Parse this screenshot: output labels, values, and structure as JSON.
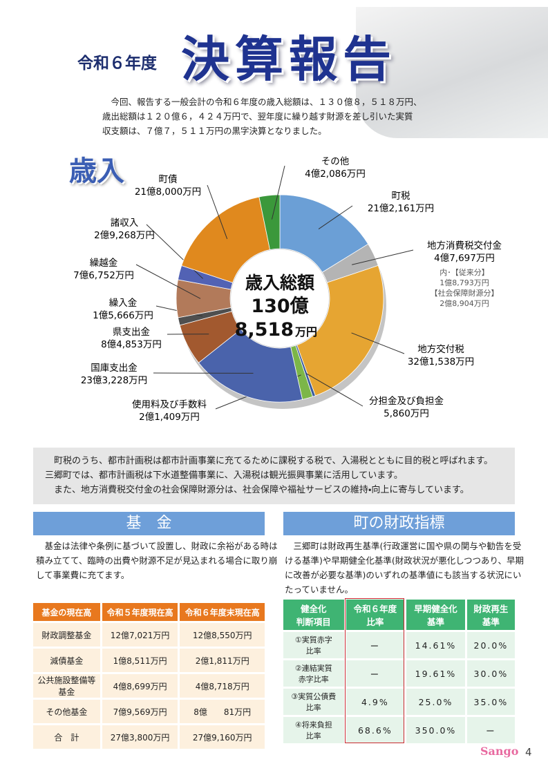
{
  "header": {
    "era": "令和６年度",
    "title": "決算報告"
  },
  "intro": [
    "　今回、報告する一般会計の令和６年度の歳入総額は、１３０億８，５１８万円、",
    "歳出総額は１２０億６，４２４万円で、翌年度に繰り越す財源を差し引いた実質",
    "収支額は、７億７，５１１万円の黒字決算となりました。"
  ],
  "section_title": "歳入",
  "chart_data": {
    "type": "pie",
    "categories": [
      "町税",
      "地方消費税交付金",
      "地方交付税",
      "分担金及び負担金",
      "使用料及び手数料",
      "国庫支出金",
      "県支出金",
      "繰入金",
      "繰越金",
      "諸収入",
      "町債",
      "その他"
    ],
    "values": [
      212161,
      47697,
      321538,
      5860,
      21409,
      233228,
      84853,
      15666,
      76752,
      29268,
      218000,
      42086
    ],
    "value_labels": [
      "21億2,161万円",
      "4億7,697万円",
      "32億1,538万円",
      "5,860万円",
      "2億1,409万円",
      "23億3,228万円",
      "8億4,853万円",
      "1億5,666万円",
      "7億6,752万円",
      "2億9,268万円",
      "21億8,000万円",
      "4億2,086万円"
    ],
    "colors": [
      "#6b9fd6",
      "#b4b4b4",
      "#e6a532",
      "#3c5c9c",
      "#7cb648",
      "#4a63ab",
      "#a2592f",
      "#4f4f4f",
      "#b27a5a",
      "#5262b4",
      "#e0891e",
      "#3b983b"
    ],
    "center_label": [
      "歳入総額",
      "130億",
      "8,518",
      "万円"
    ],
    "annotations": [
      "内･【従来分】",
      "1億8,793万円",
      "【社会保障財源分】",
      "2億8,904万円"
    ]
  },
  "note": [
    "　町税のうち、都市計画税は都市計画事業に充てるために課税する税で、入湯税とともに目的税と呼ばれます。",
    "三郷町では、都市計画税は下水道整備事業に、入湯税は観光振興事業に活用しています。",
    "　また、地方消費税交付金の社会保障財源分は、社会保障や福祉サービスの維持・向上に寄与しています。"
  ],
  "fund": {
    "title": "基　金",
    "text": [
      "　基金は法律や条例に基づいて設置し、財政に余裕がある時は",
      "積み立てて、臨時の出費や財源不足が見込まれる場合に取り崩",
      "して事業費に充てます。"
    ],
    "table": {
      "header": [
        "基金の現在高",
        "令和５年度現在高",
        "令和６年度末現在高"
      ],
      "rows": [
        [
          "財政調整基金",
          "12億7,021万円",
          "12億8,550万円"
        ],
        [
          "減債基金",
          "1億8,511万円",
          "2億1,811万円"
        ],
        [
          "公共施設整備等\n基金",
          "4億8,699万円",
          "4億8,718万円"
        ],
        [
          "その他基金",
          "7億9,569万円",
          "8億　　81万円"
        ],
        [
          "合　計",
          "27億3,800万円",
          "27億9,160万円"
        ]
      ]
    }
  },
  "fiscal": {
    "title": "町の財政指標",
    "text": [
      "　三郷町は財政再生基準(行政運営に国や県の関与や勧告を受",
      "ける基準)や早期健全化基準(財政状況が悪化しつつあり、早期",
      "に改善が必要な基準)のいずれの基準値にも該当する状況にい",
      "たっていません。"
    ],
    "table": {
      "header": [
        "健全化\n判断項目",
        "令和６年度\n比率",
        "早期健全化\n基準",
        "財政再生\n基準"
      ],
      "rows": [
        [
          "①実質赤字\n比率",
          "ー",
          "14.61%",
          "20.0%"
        ],
        [
          "②連結実質\n赤字比率",
          "ー",
          "19.61%",
          "30.0%"
        ],
        [
          "③実質公債費\n比率",
          "4.9%",
          "25.0%",
          "35.0%"
        ],
        [
          "④将来負担\n比率",
          "68.6%",
          "350.0%",
          "ー"
        ]
      ]
    }
  },
  "footer": {
    "logo": "Sango",
    "page": "4"
  }
}
